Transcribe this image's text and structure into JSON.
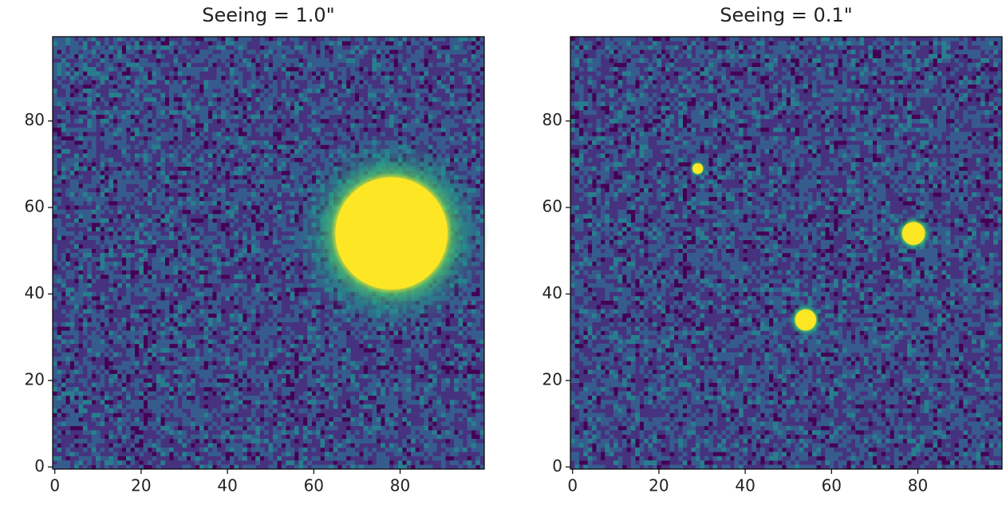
{
  "chart_data": [
    {
      "type": "image",
      "title": "Seeing = 1.0\"",
      "colormap": "viridis",
      "xlim": [
        -0.5,
        99.5
      ],
      "ylim": [
        -0.5,
        99.5
      ],
      "xticks": [
        0,
        20,
        40,
        60,
        80
      ],
      "yticks": [
        0,
        20,
        40,
        60,
        80
      ],
      "sources": [
        {
          "x": 78,
          "y": 54,
          "r": 13
        }
      ]
    },
    {
      "type": "image",
      "title": "Seeing = 0.1\"",
      "colormap": "viridis",
      "xlim": [
        -0.5,
        99.5
      ],
      "ylim": [
        -0.5,
        99.5
      ],
      "xticks": [
        0,
        20,
        40,
        60,
        80
      ],
      "yticks": [
        0,
        20,
        40,
        60,
        80
      ],
      "sources": [
        {
          "x": 29,
          "y": 69,
          "r": 1.2
        },
        {
          "x": 54,
          "y": 34,
          "r": 2.4
        },
        {
          "x": 79,
          "y": 54,
          "r": 2.6
        }
      ]
    }
  ]
}
